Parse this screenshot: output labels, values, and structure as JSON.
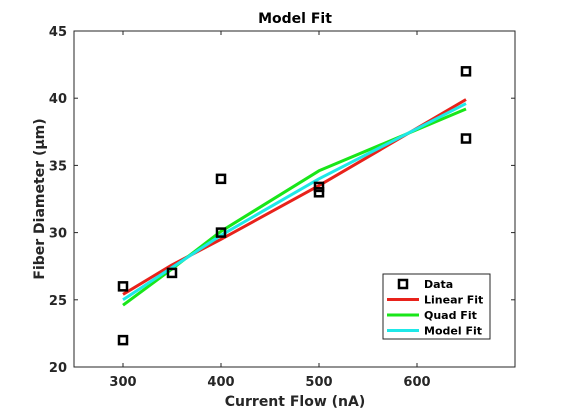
{
  "chart_data": {
    "type": "scatter",
    "title": "Model Fit",
    "xlabel": "Current Flow (nA)",
    "ylabel": "Fiber Diameter (μm)",
    "xlim": [
      250,
      700
    ],
    "ylim": [
      20,
      45
    ],
    "xticks": [
      300,
      400,
      500,
      600
    ],
    "yticks": [
      20,
      25,
      30,
      35,
      40,
      45
    ],
    "grid": false,
    "legend_position": "lower-right",
    "series": [
      {
        "name": "Data",
        "kind": "markers",
        "marker": "square",
        "color": "#000000",
        "points": [
          [
            300,
            26
          ],
          [
            300,
            22
          ],
          [
            350,
            27
          ],
          [
            400,
            34
          ],
          [
            400,
            30
          ],
          [
            500,
            33.4
          ],
          [
            500,
            33
          ],
          [
            650,
            42
          ],
          [
            650,
            37
          ]
        ]
      },
      {
        "name": "Linear Fit",
        "kind": "line",
        "color": "#e8221b",
        "points": [
          [
            300,
            25.4
          ],
          [
            350,
            27.6
          ],
          [
            400,
            29.5
          ],
          [
            500,
            33.5
          ],
          [
            650,
            39.9
          ]
        ]
      },
      {
        "name": "Quad Fit",
        "kind": "line",
        "color": "#19e619",
        "points": [
          [
            300,
            24.6
          ],
          [
            350,
            27.3
          ],
          [
            400,
            30.1
          ],
          [
            500,
            34.6
          ],
          [
            650,
            39.2
          ]
        ]
      },
      {
        "name": "Model Fit",
        "kind": "line",
        "color": "#1ee8e8",
        "points": [
          [
            300,
            25.0
          ],
          [
            350,
            27.4
          ],
          [
            400,
            29.8
          ],
          [
            500,
            34.0
          ],
          [
            650,
            39.6
          ]
        ]
      }
    ]
  }
}
